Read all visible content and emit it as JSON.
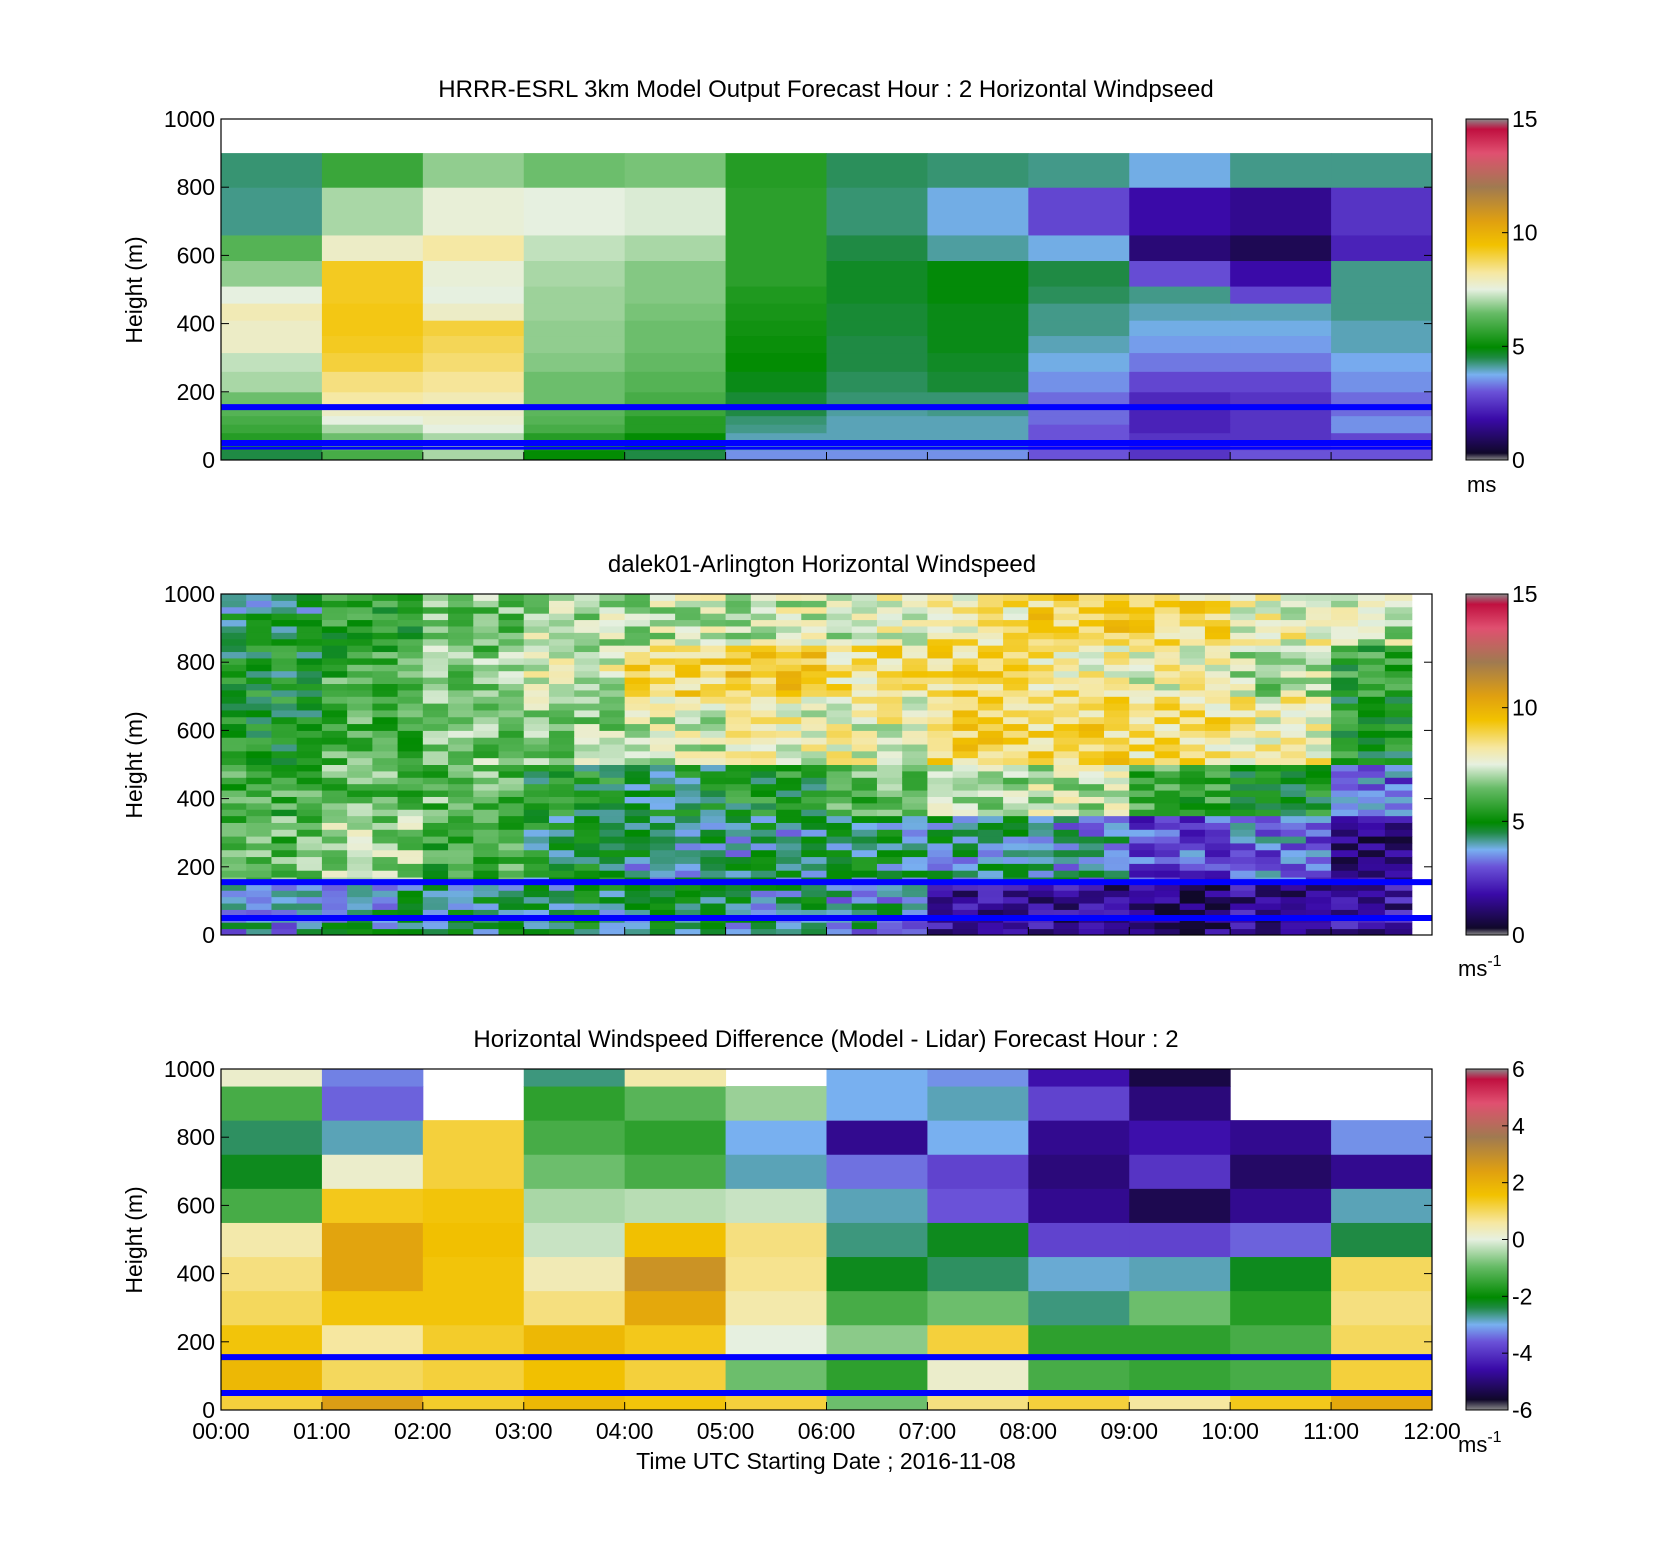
{
  "figure": {
    "xlabel": "Time UTC  Starting Date ; 2016-11-08",
    "x_ticks": [
      "00:00",
      "01:00",
      "02:00",
      "03:00",
      "04:00",
      "05:00",
      "06:00",
      "07:00",
      "08:00",
      "09:00",
      "10:00",
      "11:00",
      "12:00"
    ]
  },
  "chart_data": [
    {
      "type": "heatmap",
      "title": "HRRR-ESRL 3km Model Output   Forecast Hour : 2 Horizontal Windpseed",
      "ylabel": "Height (m)",
      "xlim": [
        0,
        12
      ],
      "ylim": [
        0,
        1000
      ],
      "y_ticks": [
        "0",
        "200",
        "400",
        "600",
        "800",
        "1000"
      ],
      "colorbar": {
        "range": [
          0,
          15
        ],
        "ticks": [
          "0",
          "5",
          "10",
          "15"
        ],
        "unit": "ms"
      },
      "reference_lines_m": [
        155,
        50,
        35
      ],
      "hour_columns": [
        0,
        1,
        2,
        3,
        4,
        5,
        6,
        7,
        8,
        9,
        10,
        11
      ],
      "level_tops_m": [
        30,
        55,
        80,
        105,
        130,
        155,
        200,
        260,
        315,
        365,
        410,
        460,
        510,
        585,
        660,
        800,
        900,
        1000
      ],
      "values_ms": [
        [
          4.5,
          6,
          7,
          5,
          4.5,
          3.5,
          3.5,
          3.5,
          3,
          2.5,
          3,
          3
        ],
        [
          5.5,
          6.5,
          7,
          5.5,
          5,
          4,
          4,
          4,
          3,
          2.5,
          2.8,
          3
        ],
        [
          5.5,
          6.5,
          7,
          5.5,
          5,
          4,
          4,
          4,
          3,
          2.5,
          2.5,
          2.8
        ],
        [
          5.8,
          7,
          7.5,
          6,
          5.5,
          4.2,
          4,
          4,
          3,
          2.2,
          2.5,
          3.5
        ],
        [
          6,
          7.5,
          7.7,
          6.2,
          5.5,
          4.3,
          4,
          4,
          3.2,
          2.2,
          2.5,
          3.5
        ],
        [
          6.2,
          7.8,
          7.8,
          6.3,
          5.8,
          4.5,
          4.1,
          4.2,
          3.2,
          2.2,
          2.5,
          3.2
        ],
        [
          6.5,
          8.2,
          8,
          6.5,
          6,
          4.6,
          4.3,
          4.3,
          3.2,
          2.3,
          2.5,
          3.2
        ],
        [
          7,
          8.5,
          8.3,
          6.5,
          6.2,
          4.8,
          4.4,
          4.6,
          3.5,
          2.8,
          2.8,
          3.5
        ],
        [
          7.2,
          9,
          8.6,
          6.7,
          6.4,
          5,
          4.5,
          4.7,
          3.8,
          3.3,
          3.3,
          3.7
        ],
        [
          7.8,
          9.2,
          8.8,
          6.8,
          6.5,
          5.1,
          4.5,
          4.8,
          4,
          3.6,
          3.6,
          4
        ],
        [
          7.8,
          9.3,
          9,
          6.8,
          6.5,
          5.2,
          4.6,
          4.8,
          4.2,
          3.8,
          3.8,
          4
        ],
        [
          8,
          9.3,
          7.8,
          6.9,
          6.6,
          5.3,
          4.6,
          4.8,
          4.2,
          4,
          4,
          4.2
        ],
        [
          7.5,
          9.2,
          7.5,
          6.9,
          6.7,
          5.4,
          4.7,
          4.9,
          4.4,
          4.2,
          2.8,
          4.2
        ],
        [
          6.8,
          9.2,
          7.6,
          7,
          6.7,
          5.6,
          4.7,
          4.9,
          4.5,
          2.9,
          1.8,
          4.2
        ],
        [
          6.2,
          7.8,
          8.2,
          7.2,
          7,
          5.6,
          4.5,
          4.1,
          3.8,
          1.2,
          0.8,
          2.2
        ],
        [
          4.2,
          7,
          7.6,
          7.5,
          7.4,
          5.6,
          4.3,
          3.8,
          2.8,
          1.8,
          1.5,
          2.5
        ],
        [
          4.3,
          5.8,
          6.8,
          6.5,
          6.6,
          5.5,
          4.4,
          4.3,
          4.2,
          3.8,
          4.2,
          4.2
        ]
      ]
    },
    {
      "type": "heatmap",
      "title": "dalek01-Arlington  Horizontal Windspeed",
      "ylabel": "Height (m)",
      "xlim": [
        0,
        12
      ],
      "ylim": [
        0,
        1000
      ],
      "y_ticks": [
        "0",
        "200",
        "400",
        "600",
        "800",
        "1000"
      ],
      "colorbar": {
        "range": [
          0,
          15
        ],
        "ticks": [
          "0",
          "5",
          "10",
          "15"
        ],
        "unit": "ms",
        "unit_superscript": "-1"
      },
      "reference_lines_m": [
        155,
        50
      ],
      "note": "lidar profiles roughly every 15 minutes up to about 1000 m; values are approximate by time/height band",
      "time_bands_h": [
        [
          0,
          1
        ],
        [
          1,
          2
        ],
        [
          2,
          3
        ],
        [
          3,
          4
        ],
        [
          4,
          5
        ],
        [
          5,
          6
        ],
        [
          6,
          7
        ],
        [
          7,
          8
        ],
        [
          8,
          9
        ],
        [
          9,
          10
        ],
        [
          10,
          11
        ],
        [
          11,
          11.8
        ]
      ],
      "height_bands_m": [
        [
          0,
          150
        ],
        [
          150,
          350
        ],
        [
          350,
          500
        ],
        [
          500,
          700
        ],
        [
          700,
          850
        ],
        [
          850,
          1000
        ]
      ],
      "values_ms": [
        [
          3.8,
          4.2,
          4.5,
          4.5,
          4.3,
          4.2,
          3.8,
          1.8,
          1.5,
          1.2,
          1.6,
          1.8
        ],
        [
          6.2,
          6.8,
          5.8,
          4.8,
          4.2,
          4.2,
          4.4,
          4.2,
          3.8,
          2.8,
          3.2,
          1.2
        ],
        [
          5.8,
          6.2,
          6.2,
          5.2,
          4.8,
          5.2,
          6.2,
          6.8,
          7.2,
          5.8,
          5.2,
          3.0
        ],
        [
          5.2,
          6,
          6.5,
          6.8,
          7.5,
          7.8,
          7.8,
          8.8,
          8.8,
          8.5,
          8,
          5.2
        ],
        [
          5,
          5.8,
          6.5,
          7.5,
          8.8,
          9.2,
          8.5,
          8.6,
          8.2,
          7.8,
          7,
          5.5
        ],
        [
          4.5,
          5.5,
          6.5,
          7,
          7.2,
          7.3,
          7.5,
          8.3,
          8.9,
          8.7,
          7.8,
          7.2
        ]
      ]
    },
    {
      "type": "heatmap",
      "title": "Horizontal Windspeed Difference (Model - Lidar) Forecast Hour : 2",
      "ylabel": "Height (m)",
      "xlim": [
        0,
        12
      ],
      "ylim": [
        0,
        1000
      ],
      "y_ticks": [
        "0",
        "200",
        "400",
        "600",
        "800",
        "1000"
      ],
      "colorbar": {
        "range": [
          -6,
          6
        ],
        "ticks": [
          "-6",
          "-4",
          "-2",
          "0",
          "2",
          "4",
          "6"
        ],
        "unit": "ms",
        "unit_superscript": "-1"
      },
      "reference_lines_m": [
        155,
        50
      ],
      "hour_columns": [
        0,
        1,
        2,
        3,
        4,
        5,
        6,
        7,
        8,
        9,
        10,
        11
      ],
      "level_tops_m": [
        60,
        150,
        250,
        350,
        450,
        550,
        650,
        750,
        850,
        950,
        1000
      ],
      "values_ms": [
        [
          1.2,
          2.5,
          1.3,
          1.8,
          1.5,
          1.2,
          -0.8,
          0.8,
          1.2,
          0.6,
          1.4,
          2.2
        ],
        [
          1.8,
          1,
          1.2,
          1.6,
          1.2,
          -0.8,
          -1.5,
          0.2,
          -1.2,
          -1.4,
          -1.2,
          1.2
        ],
        [
          1.5,
          0.6,
          1.3,
          1.8,
          1.4,
          0,
          -0.6,
          1.2,
          -1.5,
          -1.5,
          -1.2,
          1.0
        ],
        [
          1.0,
          1.5,
          1.5,
          0.8,
          2.2,
          0.5,
          -1.2,
          -0.8,
          -2.6,
          -0.8,
          -1.6,
          0.8
        ],
        [
          0.8,
          2.3,
          1.5,
          0.4,
          2.8,
          0.7,
          -2.2,
          -2.5,
          -2.9,
          -2.8,
          -2.2,
          1.0
        ],
        [
          0.5,
          2.3,
          1.6,
          -0.2,
          1.6,
          0.8,
          -2.6,
          -2.2,
          -3.8,
          -3.8,
          -3.5,
          -2.4
        ],
        [
          -1.2,
          1.4,
          1.5,
          -0.4,
          -0.3,
          -0.2,
          -2.8,
          -3.6,
          -4.8,
          -5.4,
          -4.8,
          -2.8
        ],
        [
          -2.2,
          0.2,
          1.2,
          -0.8,
          -1.2,
          -2.8,
          -3.4,
          -3.8,
          -5,
          -4,
          -5.2,
          -4.8
        ],
        [
          -2.5,
          -2.8,
          1.2,
          -1.2,
          -1.5,
          -3,
          -4.8,
          -3,
          -4.8,
          -4.5,
          -4.8,
          -3.2
        ],
        [
          -1.2,
          -3.5,
          null,
          -1.5,
          -1,
          -0.5,
          -3,
          -2.8,
          -3.8,
          -5,
          null,
          null
        ],
        [
          0.2,
          -3.3,
          null,
          -2.6,
          0.5,
          null,
          -3.0,
          -3.2,
          -4.5,
          -5.5,
          null,
          null
        ]
      ]
    }
  ]
}
